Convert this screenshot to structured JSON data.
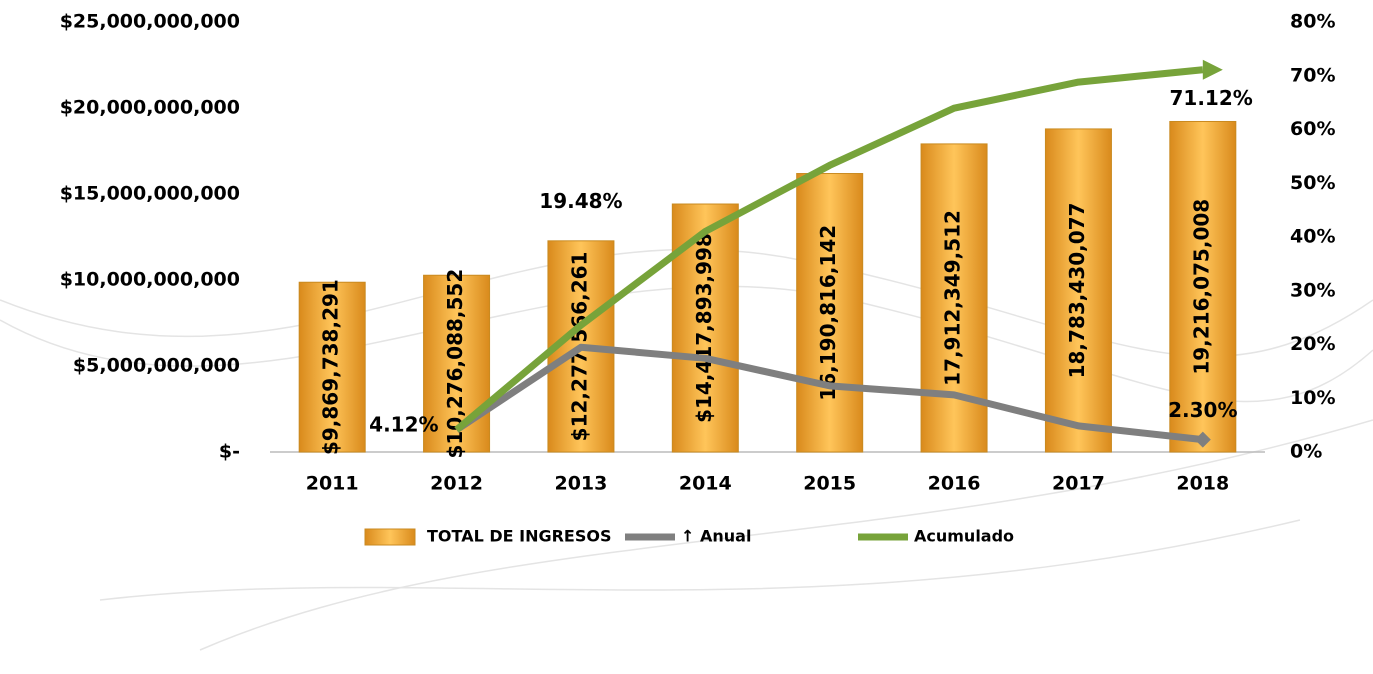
{
  "chart_data": {
    "type": "bar",
    "categories": [
      "2011",
      "2012",
      "2013",
      "2014",
      "2015",
      "2016",
      "2017",
      "2018"
    ],
    "series": [
      {
        "name": "TOTAL DE INGRESOS",
        "type": "bar",
        "color": "#f2a93b",
        "values": [
          9869738291,
          10276088552,
          12277566261,
          14417893998,
          16190816142,
          17912349512,
          18783430077,
          19216075008
        ],
        "value_labels": [
          "$9,869,738,291",
          "$10,276,088,552",
          "$12,277,566,261",
          "$14,417,893,998",
          "16,190,816,142",
          "17,912,349,512",
          "18,783,430,077",
          "19,216,075,008"
        ]
      },
      {
        "name": "↑ Anual",
        "type": "line",
        "axis": "y2",
        "color": "#7f7f7f",
        "values": [
          null,
          4.12,
          19.48,
          17.43,
          12.3,
          10.63,
          4.86,
          2.3
        ],
        "value_labels": [
          null,
          "4.12%",
          "19.48%",
          null,
          null,
          null,
          null,
          "2.30%"
        ]
      },
      {
        "name": "Acumulado",
        "type": "line",
        "axis": "y2",
        "color": "#77a33a",
        "values": [
          null,
          4.12,
          23.6,
          41.03,
          53.33,
          63.96,
          68.82,
          71.12
        ],
        "value_labels": [
          null,
          null,
          null,
          null,
          null,
          null,
          null,
          "71.12%"
        ]
      }
    ],
    "ylim": [
      0,
      25000000000
    ],
    "yticks": [
      {
        "value": 0,
        "label": "$-"
      },
      {
        "value": 5000000000,
        "label": "$5,000,000,000"
      },
      {
        "value": 10000000000,
        "label": "$10,000,000,000"
      },
      {
        "value": 15000000000,
        "label": "$15,000,000,000"
      },
      {
        "value": 20000000000,
        "label": "$20,000,000,000"
      },
      {
        "value": 25000000000,
        "label": "$25,000,000,000"
      }
    ],
    "y2lim": [
      0,
      80
    ],
    "y2ticks": [
      {
        "value": 0,
        "label": "0%"
      },
      {
        "value": 10,
        "label": "10%"
      },
      {
        "value": 20,
        "label": "20%"
      },
      {
        "value": 30,
        "label": "30%"
      },
      {
        "value": 40,
        "label": "40%"
      },
      {
        "value": 50,
        "label": "50%"
      },
      {
        "value": 60,
        "label": "60%"
      },
      {
        "value": 70,
        "label": "70%"
      },
      {
        "value": 80,
        "label": "80%"
      }
    ],
    "legend": "bottom"
  }
}
